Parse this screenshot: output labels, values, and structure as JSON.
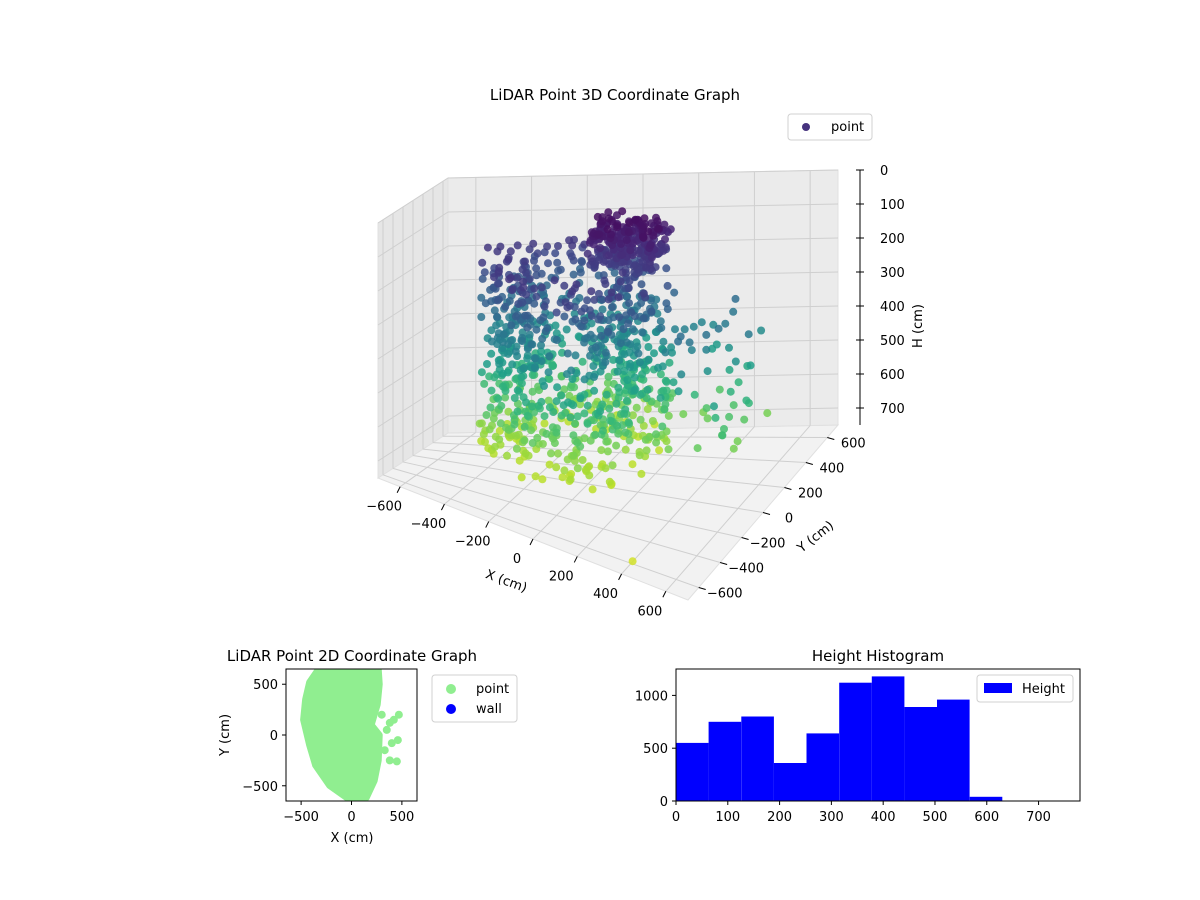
{
  "colors": {
    "point_2d": "#90ee90",
    "wall": "#0000ff",
    "histogram": "#0000ff",
    "legend_point_3d": "#46337e",
    "colormap": "viridis"
  },
  "chart_data": [
    {
      "type": "scatter",
      "projection": "3d",
      "title": "LiDAR Point 3D Coordinate Graph",
      "xlabel": "X (cm)",
      "ylabel": "Y (cm)",
      "zlabel": "H (cm)",
      "xlim": [
        -700,
        700
      ],
      "ylim": [
        -700,
        700
      ],
      "zlim": [
        0,
        750
      ],
      "z_axis_inverted": true,
      "x_ticks": [
        "−600",
        "−400",
        "−200",
        "0",
        "200",
        "400",
        "600"
      ],
      "y_ticks": [
        "−600",
        "−400",
        "−200",
        "0",
        "200",
        "400",
        "600"
      ],
      "z_ticks": [
        "0",
        "100",
        "200",
        "300",
        "400",
        "500",
        "600",
        "700"
      ],
      "legend": [
        "point"
      ],
      "legend_position": "top-right",
      "grid": true,
      "color_by": "height"
    },
    {
      "type": "scatter",
      "title": "LiDAR Point 2D Coordinate Graph",
      "xlabel": "X (cm)",
      "ylabel": "Y (cm)",
      "xlim": [
        -650,
        650
      ],
      "ylim": [
        -650,
        650
      ],
      "x_ticks": [
        "−500",
        "0",
        "500"
      ],
      "y_ticks": [
        "−500",
        "0",
        "500"
      ],
      "series": [
        {
          "name": "point",
          "color": "#90ee90"
        },
        {
          "name": "wall",
          "color": "#0000ff"
        }
      ],
      "legend_position": "outside right",
      "point_region": {
        "outline": [
          [
            -330,
            650
          ],
          [
            270,
            650
          ],
          [
            280,
            500
          ],
          [
            260,
            300
          ],
          [
            200,
            100
          ],
          [
            280,
            0
          ],
          [
            270,
            -250
          ],
          [
            230,
            -450
          ],
          [
            150,
            -620
          ],
          [
            -50,
            -620
          ],
          [
            -220,
            -500
          ],
          [
            -360,
            -300
          ],
          [
            -420,
            -100
          ],
          [
            -480,
            150
          ],
          [
            -460,
            350
          ],
          [
            -420,
            520
          ]
        ],
        "extras": [
          [
            470,
            200
          ],
          [
            420,
            150
          ],
          [
            380,
            120
          ],
          [
            460,
            -50
          ],
          [
            400,
            -80
          ],
          [
            450,
            -260
          ],
          [
            380,
            -250
          ],
          [
            330,
            -150
          ],
          [
            350,
            50
          ],
          [
            300,
            200
          ]
        ]
      }
    },
    {
      "type": "bar",
      "subtype": "histogram",
      "title": "Height Histogram",
      "series": [
        {
          "name": "Height",
          "color": "#0000ff"
        }
      ],
      "bin_edges": [
        0,
        63,
        126,
        189,
        252,
        315,
        378,
        441,
        504,
        567,
        630
      ],
      "values": [
        550,
        750,
        800,
        360,
        640,
        1120,
        1180,
        890,
        960,
        40
      ],
      "xlim": [
        0,
        780
      ],
      "ylim": [
        0,
        1250
      ],
      "x_ticks": [
        "0",
        "100",
        "200",
        "300",
        "400",
        "500",
        "600",
        "700"
      ],
      "y_ticks": [
        "0",
        "500",
        "1000"
      ],
      "legend_position": "top-right"
    }
  ]
}
